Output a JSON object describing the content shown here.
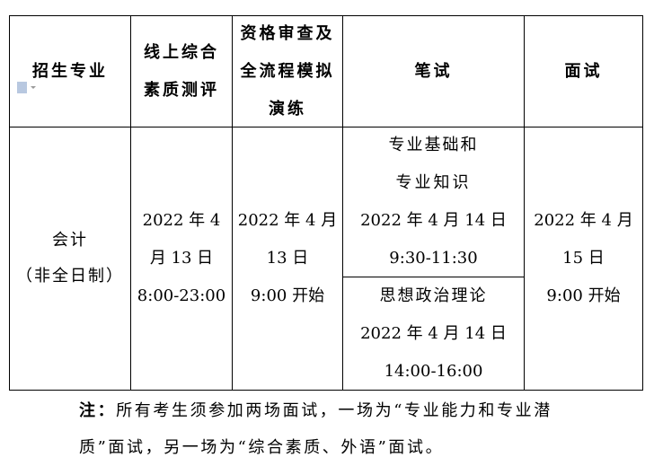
{
  "table": {
    "headers": [
      [
        "招生专业"
      ],
      [
        "线上综合",
        "素质测评"
      ],
      [
        "资格审查及",
        "全流程模拟",
        "演练"
      ],
      [
        "笔试"
      ],
      [
        "面试"
      ]
    ],
    "row": {
      "major": [
        "会计",
        "（非全日制）"
      ],
      "online_eval": [
        "2022 年 4",
        "月 13 日",
        "8:00-23:00"
      ],
      "qualification": [
        "2022 年 4 月",
        "13 日",
        "9:00 开始"
      ],
      "written_1": [
        "专业基础和",
        "专业知识",
        "2022 年 4 月 14 日",
        "9:30-11:30"
      ],
      "written_2": [
        "思想政治理论",
        "2022 年 4 月 14 日",
        "14:00-16:00"
      ],
      "interview": [
        "2022 年 4 月",
        "15 日",
        "9:00 开始"
      ]
    }
  },
  "icons": {
    "doc": "document-icon"
  },
  "note": {
    "label": "注：",
    "line1": "所有考生须参加两场面试，一场为“专业能力和专业潜",
    "line2": "质”面试，另一场为“综合素质、外语”面试。"
  }
}
